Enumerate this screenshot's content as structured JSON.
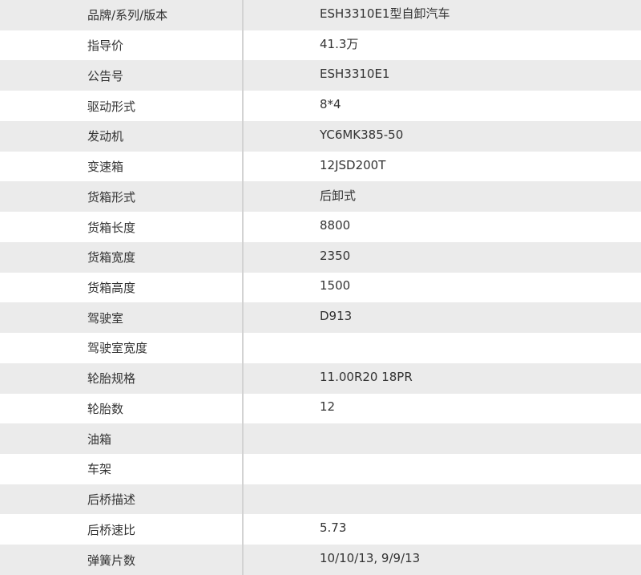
{
  "specs": [
    {
      "label": "品牌/系列/版本",
      "value": "ESH3310E1型自卸汽车"
    },
    {
      "label": "指导价",
      "value": "41.3万"
    },
    {
      "label": "公告号",
      "value": "ESH3310E1"
    },
    {
      "label": "驱动形式",
      "value": "8*4"
    },
    {
      "label": "发动机",
      "value": "YC6MK385-50"
    },
    {
      "label": "变速箱",
      "value": "12JSD200T"
    },
    {
      "label": "货箱形式",
      "value": "后卸式"
    },
    {
      "label": "货箱长度",
      "value": "8800"
    },
    {
      "label": "货箱宽度",
      "value": "2350"
    },
    {
      "label": "货箱高度",
      "value": "1500"
    },
    {
      "label": "驾驶室",
      "value": "D913"
    },
    {
      "label": "驾驶室宽度",
      "value": ""
    },
    {
      "label": "轮胎规格",
      "value": "11.00R20 18PR"
    },
    {
      "label": "轮胎数",
      "value": "12"
    },
    {
      "label": "油箱",
      "value": ""
    },
    {
      "label": "车架",
      "value": ""
    },
    {
      "label": "后桥描述",
      "value": ""
    },
    {
      "label": "后桥速比",
      "value": "5.73"
    },
    {
      "label": "弹簧片数",
      "value": "10/10/13, 9/9/13"
    }
  ]
}
